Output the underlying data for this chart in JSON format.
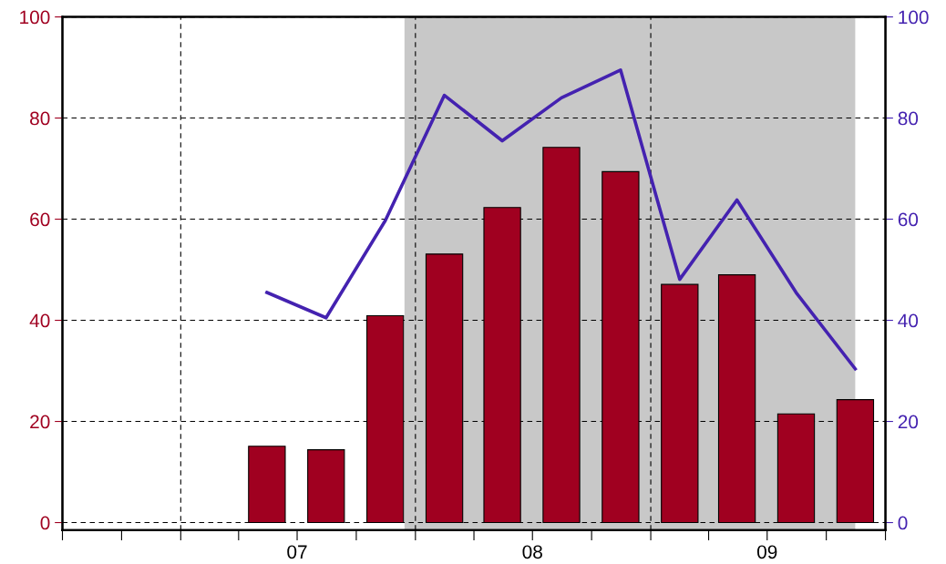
{
  "chart_data": {
    "type": "bar",
    "x": [
      "2007-05-15",
      "2007-08-15",
      "2007-11-15",
      "2008-02-15",
      "2008-05-15",
      "2008-08-15",
      "2008-11-15",
      "2009-02-15",
      "2009-05-15",
      "2009-08-15",
      "2009-11-15"
    ],
    "series": [
      {
        "color": "#a00020",
        "values": [
          15.1,
          14.4,
          40.9,
          53.1,
          62.3,
          74.2,
          69.4,
          47.1,
          49.0,
          21.5,
          24.3
        ]
      },
      {
        "type": "line",
        "axis": "y2",
        "color": "#4422b0",
        "values": [
          45.5,
          40.5,
          59.7,
          84.5,
          75.5,
          84.0,
          89.5,
          48.1,
          63.8,
          45.5,
          30.4
        ]
      }
    ],
    "xlim": [
      "2006-07-01",
      "2010-01-01"
    ],
    "xticks": [
      {
        "value": "2006-07-01",
        "label": null
      },
      {
        "value": "2006-10-01",
        "label": null
      },
      {
        "value": "2007-01-01",
        "label": null
      },
      {
        "value": "2007-04-01",
        "label": null
      },
      {
        "value": "2007-07-01",
        "label": "07"
      },
      {
        "value": "2007-10-01",
        "label": null
      },
      {
        "value": "2008-01-01",
        "label": null
      },
      {
        "value": "2008-04-01",
        "label": null
      },
      {
        "value": "2008-07-01",
        "label": "08"
      },
      {
        "value": "2008-10-01",
        "label": null
      },
      {
        "value": "2009-01-01",
        "label": null
      },
      {
        "value": "2009-04-01",
        "label": null
      },
      {
        "value": "2009-07-01",
        "label": "09"
      },
      {
        "value": "2009-10-01",
        "label": null
      },
      {
        "value": "2010-01-01",
        "label": null
      }
    ],
    "ylim": [
      -1.5,
      100
    ],
    "yticks": [
      0,
      20,
      40,
      60,
      80,
      100
    ],
    "y2lim": [
      -1.5,
      100
    ],
    "y2ticks": [
      0,
      20,
      40,
      60,
      80,
      100
    ],
    "grid": "y",
    "ref_lines": [
      {
        "axis": "x",
        "value": "2007-01-01",
        "line_style": "dashed",
        "color": "#000000"
      },
      {
        "axis": "x",
        "value": "2008-01-01",
        "line_style": "dashed",
        "color": "#000000"
      },
      {
        "axis": "x",
        "value": "2009-01-01",
        "line_style": "dashed",
        "color": "#000000"
      }
    ],
    "bands": [
      {
        "axis": "x",
        "from": "2007-12-15",
        "to": "2009-11-15",
        "color": "#c8c8c8"
      }
    ]
  }
}
